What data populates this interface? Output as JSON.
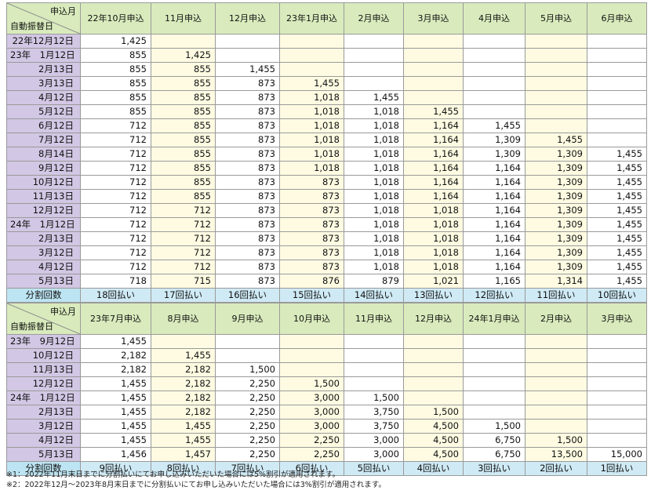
{
  "table1": {
    "corner_top": "申込月",
    "corner_bottom": "自動振替日",
    "headers": [
      "22年10月申込",
      "11月申込",
      "12月申込",
      "23年1月申込",
      "2月申込",
      "3月申込",
      "4月申込",
      "5月申込",
      "6月申込"
    ],
    "rows": [
      {
        "date": "22年12月12日",
        "values": [
          "1,425",
          "",
          "",
          "",
          "",
          "",
          "",
          "",
          ""
        ]
      },
      {
        "date": "23年　1月12日",
        "values": [
          "855",
          "1,425",
          "",
          "",
          "",
          "",
          "",
          "",
          ""
        ]
      },
      {
        "date": "2月13日",
        "values": [
          "855",
          "855",
          "1,455",
          "",
          "",
          "",
          "",
          "",
          ""
        ]
      },
      {
        "date": "3月13日",
        "values": [
          "855",
          "855",
          "873",
          "1,455",
          "",
          "",
          "",
          "",
          ""
        ]
      },
      {
        "date": "4月12日",
        "values": [
          "855",
          "855",
          "873",
          "1,018",
          "1,455",
          "",
          "",
          "",
          ""
        ]
      },
      {
        "date": "5月12日",
        "values": [
          "855",
          "855",
          "873",
          "1,018",
          "1,018",
          "1,455",
          "",
          "",
          ""
        ]
      },
      {
        "date": "6月12日",
        "values": [
          "712",
          "855",
          "873",
          "1,018",
          "1,018",
          "1,164",
          "1,455",
          "",
          ""
        ]
      },
      {
        "date": "7月12日",
        "values": [
          "712",
          "855",
          "873",
          "1,018",
          "1,018",
          "1,164",
          "1,309",
          "1,455",
          ""
        ]
      },
      {
        "date": "8月14日",
        "values": [
          "712",
          "855",
          "873",
          "1,018",
          "1,018",
          "1,164",
          "1,309",
          "1,309",
          "1,455"
        ]
      },
      {
        "date": "9月12日",
        "values": [
          "712",
          "855",
          "873",
          "1,018",
          "1,018",
          "1,164",
          "1,164",
          "1,309",
          "1,455"
        ]
      },
      {
        "date": "10月12日",
        "values": [
          "712",
          "855",
          "873",
          "873",
          "1,018",
          "1,164",
          "1,164",
          "1,309",
          "1,455"
        ]
      },
      {
        "date": "11月13日",
        "values": [
          "712",
          "855",
          "873",
          "873",
          "1,018",
          "1,164",
          "1,164",
          "1,309",
          "1,455"
        ]
      },
      {
        "date": "12月12日",
        "values": [
          "712",
          "712",
          "873",
          "873",
          "1,018",
          "1,018",
          "1,164",
          "1,309",
          "1,455"
        ]
      },
      {
        "date": "24年　1月12日",
        "values": [
          "712",
          "712",
          "873",
          "873",
          "1,018",
          "1,018",
          "1,164",
          "1,309",
          "1,455"
        ]
      },
      {
        "date": "2月13日",
        "values": [
          "712",
          "712",
          "873",
          "873",
          "1,018",
          "1,018",
          "1,164",
          "1,309",
          "1,455"
        ]
      },
      {
        "date": "3月12日",
        "values": [
          "712",
          "712",
          "873",
          "873",
          "1,018",
          "1,018",
          "1,164",
          "1,309",
          "1,455"
        ]
      },
      {
        "date": "4月12日",
        "values": [
          "712",
          "712",
          "873",
          "873",
          "1,018",
          "1,018",
          "1,164",
          "1,309",
          "1,455"
        ]
      },
      {
        "date": "5月13日",
        "values": [
          "718",
          "715",
          "873",
          "876",
          "879",
          "1,021",
          "1,165",
          "1,314",
          "1,455"
        ]
      }
    ],
    "footer_label": "分割回数",
    "footer": [
      "18回払い",
      "17回払い",
      "16回払い",
      "15回払い",
      "14回払い",
      "13回払い",
      "12回払い",
      "11回払い",
      "10回払い"
    ]
  },
  "table2": {
    "corner_top": "申込月",
    "corner_bottom": "自動振替日",
    "headers": [
      "23年7月申込",
      "8月申込",
      "9月申込",
      "10月申込",
      "11月申込",
      "12月申込",
      "24年1月申込",
      "2月申込",
      "3月申込"
    ],
    "rows": [
      {
        "date": "23年　9月12日",
        "values": [
          "1,455",
          "",
          "",
          "",
          "",
          "",
          "",
          "",
          ""
        ]
      },
      {
        "date": "10月12日",
        "values": [
          "2,182",
          "1,455",
          "",
          "",
          "",
          "",
          "",
          "",
          ""
        ]
      },
      {
        "date": "11月13日",
        "values": [
          "2,182",
          "2,182",
          "1,500",
          "",
          "",
          "",
          "",
          "",
          ""
        ]
      },
      {
        "date": "12月12日",
        "values": [
          "1,455",
          "2,182",
          "2,250",
          "1,500",
          "",
          "",
          "",
          "",
          ""
        ]
      },
      {
        "date": "24年　1月12日",
        "values": [
          "1,455",
          "2,182",
          "2,250",
          "3,000",
          "1,500",
          "",
          "",
          "",
          ""
        ]
      },
      {
        "date": "2月13日",
        "values": [
          "1,455",
          "2,182",
          "2,250",
          "3,000",
          "3,750",
          "1,500",
          "",
          "",
          ""
        ]
      },
      {
        "date": "3月12日",
        "values": [
          "1,455",
          "1,455",
          "2,250",
          "3,000",
          "3,750",
          "4,500",
          "1,500",
          "",
          ""
        ]
      },
      {
        "date": "4月12日",
        "values": [
          "1,455",
          "1,455",
          "2,250",
          "2,250",
          "3,000",
          "4,500",
          "6,750",
          "1,500",
          ""
        ]
      },
      {
        "date": "5月13日",
        "values": [
          "1,456",
          "1,457",
          "2,250",
          "2,250",
          "3,000",
          "4,500",
          "6,750",
          "13,500",
          "15,000"
        ]
      }
    ],
    "footer_label": "分割回数",
    "footer": [
      "9回払い",
      "8回払い",
      "7回払い",
      "6回払い",
      "5回払い",
      "4回払い",
      "3回払い",
      "2回払い",
      "1回払い"
    ]
  },
  "notes": [
    "※1：2022年11月末日までに分割払いにてお申し込みいただいた場合には5%割引が適用されます。",
    "※2：2022年12月～2023年8月末日までに分割払いにてお申し込みいただいた場合には3%割引が適用されます。"
  ]
}
